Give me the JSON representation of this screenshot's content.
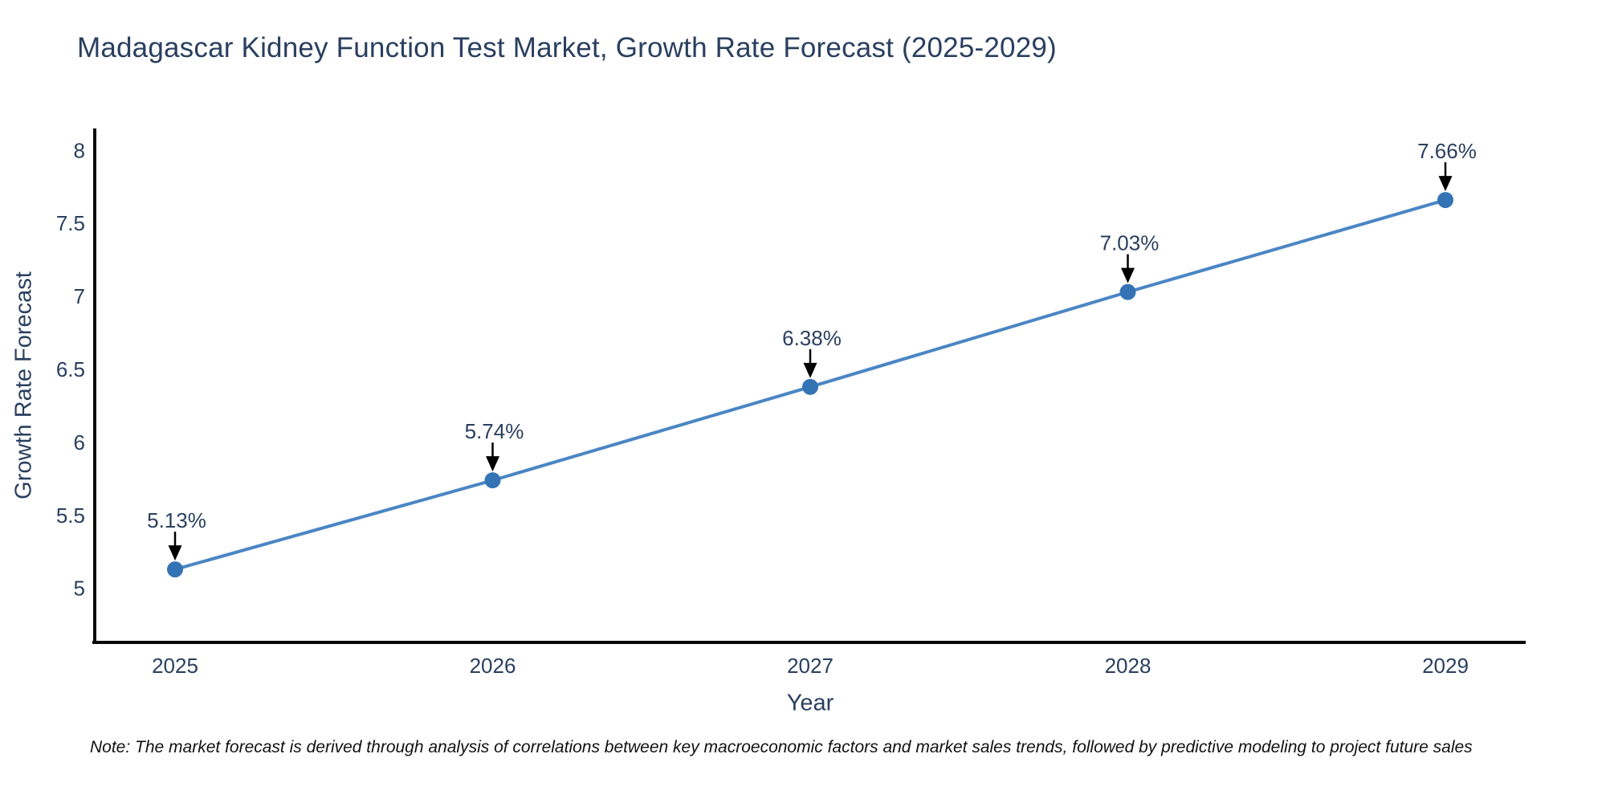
{
  "page": {
    "note": "Note: The market forecast is derived through analysis of correlations between key macroeconomic factors and market sales trends, followed by predictive modeling to project future sales"
  },
  "chart_data": {
    "type": "line",
    "title": "Madagascar Kidney Function Test Market, Growth Rate Forecast (2025-2029)",
    "xlabel": "Year",
    "ylabel": "Growth Rate Forecast",
    "categories": [
      "2025",
      "2026",
      "2027",
      "2028",
      "2029"
    ],
    "series": [
      {
        "name": "Growth Rate Forecast",
        "values": [
          5.13,
          5.74,
          6.38,
          7.03,
          7.66
        ]
      }
    ],
    "point_labels": [
      "5.13%",
      "5.74%",
      "6.38%",
      "7.03%",
      "7.66%"
    ],
    "yticks": [
      5,
      5.5,
      6,
      6.5,
      7,
      7.5,
      8
    ],
    "ylim": [
      4.63,
      8.15
    ],
    "grid": false,
    "legend_position": "none",
    "colors": {
      "line": "#4a86c4",
      "marker": "#3474b5",
      "axis": "#0a0a0a",
      "text": "#2a3f5f",
      "arrow": "#000000",
      "note_text": "#111111"
    }
  }
}
